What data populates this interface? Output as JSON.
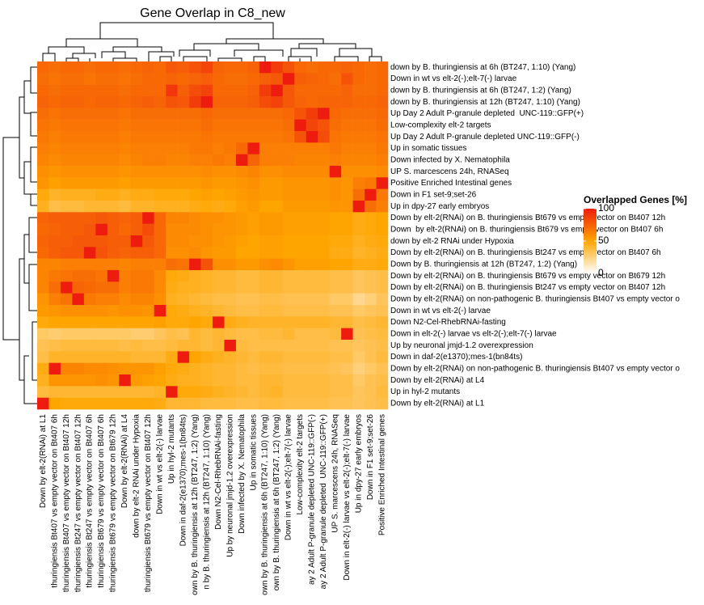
{
  "chart_data": {
    "type": "heatmap",
    "title": "Gene Overlap in C8_new",
    "rows": [
      "down by B. thuringiensis at 6h (BT247, 1:10) (Yang)",
      "Down in wt vs elt-2(-);elt-7(-) larvae",
      "down by B. thuringiensis at 6h (BT247, 1:2) (Yang)",
      "down by B. thuringiensis at 12h (BT247, 1:10) (Yang)",
      "Up Day 2 Adult P-granule depleted  UNC-119::GFP(+)",
      "Low-complexity elt-2 targets",
      "Up Day 2 Adult P-granule depleted UNC-119::GFP(-)",
      "Up in somatic tissues",
      "Down infected by X. Nematophila",
      "UP S. marcescens 24h, RNASeq",
      "Positive Enriched Intestinal genes",
      "Down in F1 set-9;set-26",
      "Up in dpy-27 early embryos",
      "Down by elt-2(RNAi) on B. thuringiensis Bt679 vs empty vector on Bt407 12h",
      "Down  by elt-2(RNAi) on B. thuringiensis Bt679 vs empty vector on Bt407 6h",
      "down by elt-2 RNAi under Hypoxia",
      "Down by elt-2(RNAi) on B. thuringiensis Bt247 vs empty vector on Bt407 6h",
      "Down by B. thuringiensis at 12h (BT247, 1:2) (Yang)",
      "Down by elt-2(RNAi) on B. thuringiensis Bt679 vs empty vector on Bt679 12h",
      "Down by elt-2(RNAi) on B. thuringiensis Bt247 vs empty vector on Bt407 12h",
      "Down by elt-2(RNAi) on non-pathogenic B. thuringiensis Bt407 vs empty vector o",
      "Down in wt vs elt-2(-) larvae",
      "Down N2-Cel-RhebRNAi-fasting",
      "Down in elt-2(-) larvae vs elt-2(-);elt-7(-) larvae",
      "Up by neuronal jmjd-1.2 overexpression",
      "Down in daf-2(e1370);mes-1(bn84ts)",
      "Down by elt-2(RNAi) on non-pathogenic B. thuringiensis Bt407 vs empty vector o",
      "Down by elt-2(RNAi) at L4",
      "Up in hyl-2 mutants",
      "Down by elt-2(RNAi) at L1"
    ],
    "columns": [
      "Down by elt-2(RNAi) at L1",
      "thuringiensis Bt407 vs empty vector on Bt407 6h",
      "thuringiensis Bt407 vs empty vector on Bt407 12h",
      "thuringiensis Bt247 vs empty vector on Bt407 12h",
      "thuringiensis Bt247 vs empty vector on Bt407 6h",
      "thuringiensis Bt679 vs empty vector on Bt407 6h",
      "thuringiensis Bt679 vs empty vector on Bt679 12h",
      "Down by elt-2(RNAi) at L4",
      "down by elt-2 RNAi under Hypoxia",
      "thuringiensis Bt679 vs empty vector on Bt407 12h",
      "Down in wt vs elt-2(-) larvae",
      "Up in hyl-2 mutants",
      "Down in daf-2(e1370);mes-1(bn84ts)",
      "own by B. thuringiensis at 12h (BT247, 1:2) (Yang)",
      "n by B. thuringiensis at 12h (BT247, 1:10) (Yang)",
      "Down N2-Cel-RhebRNAi-fasting",
      "Up by neuronal jmjd-1.2 overexpression",
      "Down infected by X. Nematophila",
      "Up in somatic tissues",
      "own by B. thuringiensis at 6h (BT247, 1:10) (Yang)",
      "own by B. thuringiensis at 6h (BT247, 1:2) (Yang)",
      "Down in wt vs elt-2(-);elt-7(-) larvae",
      "Low-complexity elt-2 targets",
      "ay 2 Adult P-granule depleted UNC-119::GFP(-)",
      "ay 2 Adult P-granule depleted  UNC-119::GFP(+)",
      "UP S. marcescens 24h, RNASeq",
      "Down in elt-2(-) larvae vs elt-2(-);elt-7(-) larvae",
      "Up in dpy-27 early embryos",
      "Down in F1 set-9;set-26",
      "Positive Enriched Intestinal genes"
    ],
    "values": [
      [
        72,
        70,
        72,
        72,
        70,
        72,
        72,
        70,
        72,
        74,
        72,
        78,
        76,
        80,
        85,
        74,
        72,
        72,
        75,
        100,
        88,
        80,
        72,
        70,
        72,
        72,
        74,
        72,
        70,
        72
      ],
      [
        70,
        68,
        70,
        70,
        68,
        70,
        70,
        68,
        70,
        72,
        72,
        74,
        72,
        74,
        76,
        72,
        70,
        70,
        72,
        76,
        78,
        100,
        76,
        74,
        72,
        70,
        80,
        72,
        70,
        72
      ],
      [
        72,
        70,
        72,
        72,
        72,
        72,
        72,
        70,
        72,
        72,
        72,
        90,
        76,
        82,
        86,
        72,
        72,
        72,
        75,
        88,
        100,
        78,
        72,
        72,
        72,
        72,
        74,
        70,
        70,
        72
      ],
      [
        74,
        72,
        74,
        74,
        72,
        74,
        74,
        72,
        74,
        76,
        74,
        80,
        78,
        88,
        100,
        74,
        74,
        74,
        76,
        82,
        86,
        78,
        74,
        72,
        74,
        74,
        74,
        72,
        72,
        74
      ],
      [
        70,
        68,
        70,
        70,
        70,
        70,
        70,
        68,
        70,
        70,
        70,
        70,
        70,
        70,
        72,
        70,
        70,
        70,
        70,
        70,
        70,
        72,
        80,
        88,
        100,
        72,
        70,
        70,
        70,
        72
      ],
      [
        68,
        66,
        68,
        68,
        68,
        68,
        68,
        66,
        68,
        68,
        68,
        68,
        68,
        68,
        70,
        68,
        68,
        68,
        68,
        68,
        68,
        70,
        100,
        85,
        80,
        70,
        68,
        68,
        68,
        70
      ],
      [
        66,
        64,
        66,
        66,
        66,
        66,
        66,
        64,
        66,
        66,
        66,
        66,
        66,
        66,
        68,
        66,
        66,
        66,
        66,
        66,
        66,
        68,
        80,
        100,
        82,
        68,
        66,
        66,
        66,
        68
      ],
      [
        64,
        62,
        64,
        64,
        64,
        64,
        64,
        62,
        64,
        64,
        64,
        64,
        64,
        66,
        66,
        64,
        66,
        72,
        100,
        64,
        64,
        64,
        64,
        64,
        64,
        66,
        64,
        64,
        64,
        66
      ],
      [
        62,
        60,
        62,
        62,
        62,
        62,
        62,
        60,
        62,
        64,
        64,
        62,
        62,
        64,
        64,
        66,
        64,
        100,
        74,
        64,
        64,
        64,
        62,
        62,
        62,
        64,
        62,
        62,
        62,
        64
      ],
      [
        58,
        56,
        58,
        58,
        58,
        58,
        58,
        56,
        58,
        58,
        58,
        58,
        58,
        58,
        60,
        58,
        58,
        60,
        62,
        58,
        58,
        60,
        60,
        60,
        60,
        100,
        58,
        58,
        58,
        60
      ],
      [
        56,
        52,
        54,
        54,
        54,
        54,
        54,
        52,
        54,
        54,
        54,
        54,
        54,
        54,
        56,
        54,
        54,
        56,
        58,
        54,
        54,
        56,
        56,
        56,
        56,
        58,
        56,
        64,
        66,
        100
      ],
      [
        48,
        42,
        44,
        44,
        44,
        46,
        46,
        44,
        46,
        46,
        48,
        48,
        48,
        50,
        52,
        50,
        52,
        54,
        56,
        54,
        54,
        56,
        56,
        56,
        56,
        58,
        56,
        70,
        100,
        66
      ],
      [
        44,
        36,
        38,
        38,
        40,
        40,
        40,
        38,
        42,
        42,
        44,
        44,
        44,
        46,
        48,
        46,
        48,
        52,
        54,
        50,
        50,
        54,
        54,
        54,
        54,
        56,
        56,
        100,
        70,
        64
      ],
      [
        74,
        76,
        76,
        76,
        76,
        78,
        76,
        74,
        76,
        100,
        72,
        62,
        62,
        60,
        58,
        58,
        56,
        54,
        52,
        54,
        54,
        52,
        52,
        52,
        52,
        50,
        50,
        46,
        48,
        50
      ],
      [
        72,
        74,
        76,
        76,
        78,
        100,
        76,
        72,
        76,
        82,
        72,
        60,
        60,
        60,
        58,
        56,
        56,
        54,
        52,
        54,
        54,
        52,
        52,
        52,
        52,
        50,
        50,
        46,
        48,
        50
      ],
      [
        74,
        76,
        76,
        78,
        78,
        78,
        76,
        76,
        100,
        78,
        72,
        60,
        60,
        58,
        58,
        56,
        54,
        52,
        50,
        52,
        52,
        50,
        50,
        50,
        50,
        48,
        48,
        44,
        46,
        48
      ],
      [
        72,
        76,
        78,
        78,
        100,
        80,
        76,
        74,
        76,
        76,
        72,
        58,
        58,
        60,
        56,
        54,
        54,
        50,
        50,
        52,
        52,
        50,
        50,
        50,
        50,
        46,
        46,
        42,
        44,
        46
      ],
      [
        62,
        62,
        64,
        64,
        64,
        64,
        64,
        62,
        64,
        64,
        64,
        70,
        68,
        100,
        80,
        58,
        58,
        54,
        54,
        58,
        60,
        56,
        52,
        52,
        52,
        50,
        50,
        46,
        46,
        48
      ],
      [
        62,
        66,
        68,
        70,
        70,
        68,
        100,
        64,
        66,
        66,
        60,
        48,
        46,
        44,
        42,
        40,
        40,
        38,
        38,
        40,
        40,
        38,
        38,
        38,
        38,
        36,
        36,
        32,
        34,
        36
      ],
      [
        62,
        70,
        100,
        74,
        72,
        70,
        70,
        64,
        66,
        66,
        60,
        46,
        44,
        44,
        42,
        40,
        40,
        38,
        38,
        40,
        40,
        38,
        38,
        38,
        38,
        36,
        36,
        32,
        34,
        36
      ],
      [
        56,
        64,
        68,
        100,
        66,
        64,
        64,
        60,
        62,
        62,
        58,
        44,
        42,
        40,
        38,
        36,
        36,
        34,
        34,
        36,
        36,
        34,
        34,
        34,
        34,
        30,
        30,
        22,
        26,
        32
      ],
      [
        54,
        56,
        58,
        58,
        58,
        58,
        56,
        58,
        58,
        56,
        100,
        48,
        46,
        44,
        42,
        40,
        38,
        36,
        36,
        38,
        38,
        36,
        36,
        36,
        36,
        34,
        34,
        30,
        32,
        34
      ],
      [
        48,
        50,
        50,
        50,
        50,
        50,
        50,
        50,
        50,
        50,
        52,
        48,
        48,
        50,
        48,
        100,
        46,
        44,
        42,
        42,
        42,
        42,
        42,
        42,
        42,
        40,
        40,
        36,
        38,
        40
      ],
      [
        30,
        28,
        30,
        30,
        30,
        30,
        30,
        30,
        28,
        28,
        32,
        36,
        34,
        40,
        38,
        40,
        38,
        36,
        36,
        38,
        38,
        40,
        36,
        36,
        36,
        38,
        100,
        34,
        36,
        38
      ],
      [
        34,
        36,
        38,
        38,
        38,
        38,
        38,
        36,
        38,
        36,
        36,
        38,
        40,
        40,
        38,
        40,
        100,
        38,
        36,
        36,
        36,
        36,
        36,
        36,
        36,
        34,
        34,
        32,
        34,
        36
      ],
      [
        36,
        42,
        42,
        42,
        42,
        42,
        42,
        42,
        40,
        40,
        40,
        46,
        100,
        50,
        46,
        44,
        42,
        40,
        38,
        40,
        40,
        38,
        38,
        38,
        38,
        36,
        36,
        30,
        34,
        38
      ],
      [
        46,
        100,
        62,
        62,
        60,
        60,
        58,
        56,
        56,
        56,
        52,
        48,
        46,
        44,
        42,
        40,
        40,
        38,
        36,
        38,
        38,
        36,
        36,
        36,
        36,
        34,
        32,
        26,
        30,
        34
      ],
      [
        44,
        56,
        56,
        56,
        56,
        58,
        56,
        100,
        54,
        52,
        50,
        46,
        44,
        44,
        42,
        40,
        40,
        38,
        38,
        40,
        40,
        38,
        38,
        38,
        38,
        36,
        36,
        30,
        34,
        36
      ],
      [
        38,
        40,
        40,
        40,
        40,
        40,
        40,
        40,
        40,
        40,
        42,
        100,
        48,
        48,
        46,
        44,
        42,
        40,
        38,
        40,
        42,
        38,
        38,
        38,
        38,
        36,
        36,
        32,
        34,
        38
      ],
      [
        100,
        50,
        48,
        48,
        48,
        48,
        48,
        48,
        48,
        48,
        46,
        40,
        40,
        40,
        38,
        38,
        38,
        36,
        36,
        38,
        38,
        36,
        36,
        36,
        36,
        34,
        34,
        32,
        34,
        36
      ]
    ],
    "colorbar_title": "Overlapped Genes [%]",
    "clim": [
      0,
      100
    ],
    "colorbar_ticks": [
      0,
      50,
      100
    ],
    "colors": [
      "#ffffff",
      "#ffa500",
      "#ee1c0e"
    ]
  }
}
